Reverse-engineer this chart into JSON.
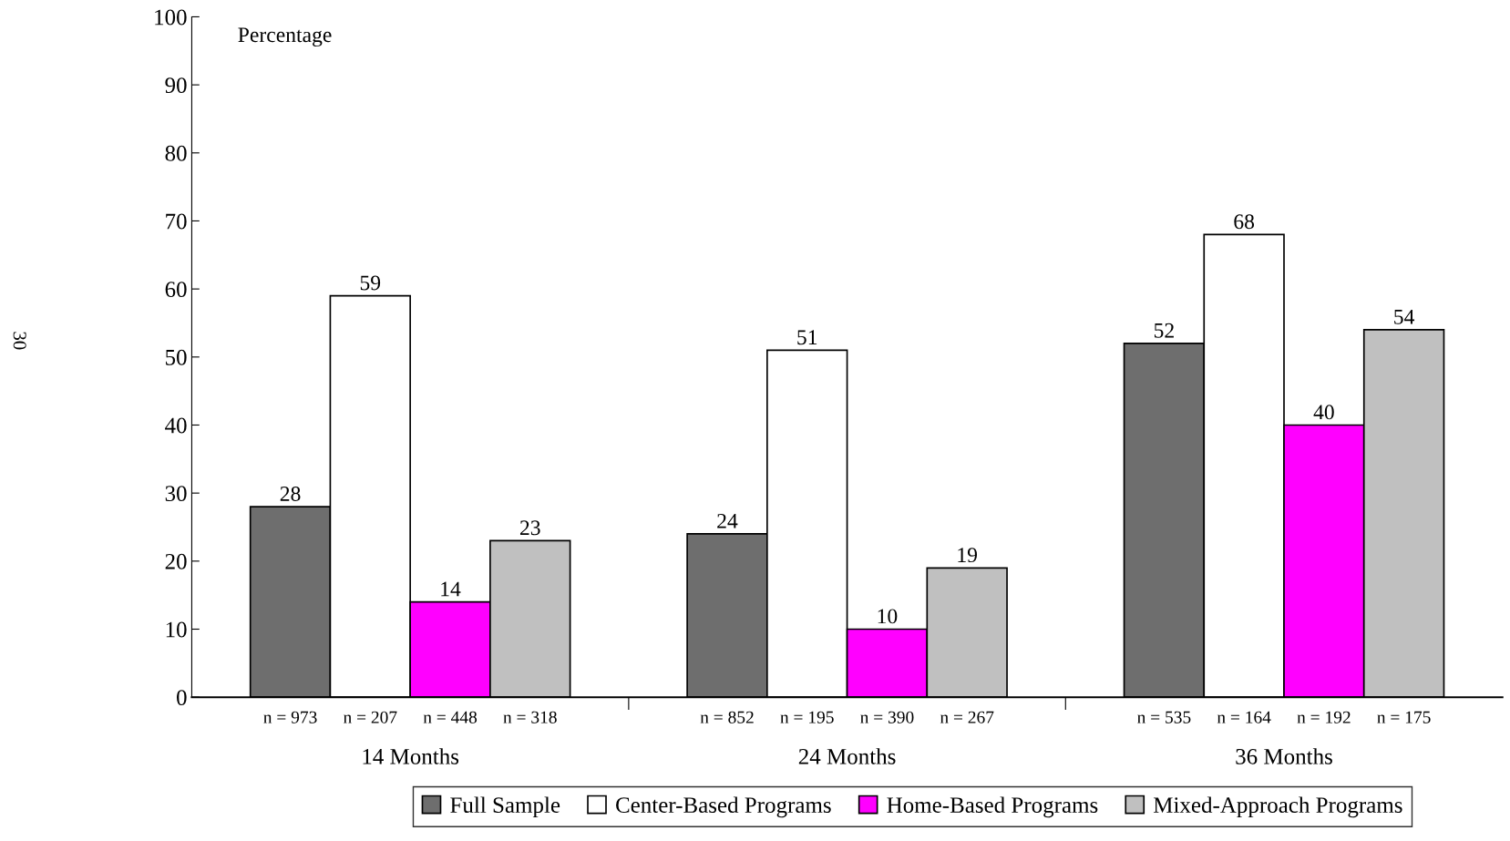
{
  "chart_data": {
    "type": "bar",
    "ylabel": "Percentage",
    "categories": [
      "14 Months",
      "24 Months",
      "36 Months"
    ],
    "series": [
      {
        "name": "Full Sample",
        "color": "#6e6e6e",
        "values": [
          28,
          24,
          52
        ]
      },
      {
        "name": "Center-Based Programs",
        "color": "#ffffff",
        "values": [
          59,
          51,
          68
        ]
      },
      {
        "name": "Home-Based Programs",
        "color": "#ff00ff",
        "values": [
          14,
          10,
          40
        ]
      },
      {
        "name": "Mixed-Approach Programs",
        "color": "#c0c0c0",
        "values": [
          23,
          19,
          54
        ]
      }
    ],
    "ylim": [
      0,
      100
    ],
    "yticks": [
      0,
      10,
      20,
      30,
      40,
      50,
      60,
      70,
      80,
      90,
      100
    ],
    "data_labels": true,
    "grid": false,
    "legend": "bottom",
    "annotations": [
      "n = 973",
      "n = 207",
      "n = 448",
      "n = 318",
      "n = 852",
      "n = 195",
      "n = 390",
      "n = 267",
      "n = 535",
      "n = 164",
      "n = 192",
      "n = 175",
      "30"
    ]
  }
}
